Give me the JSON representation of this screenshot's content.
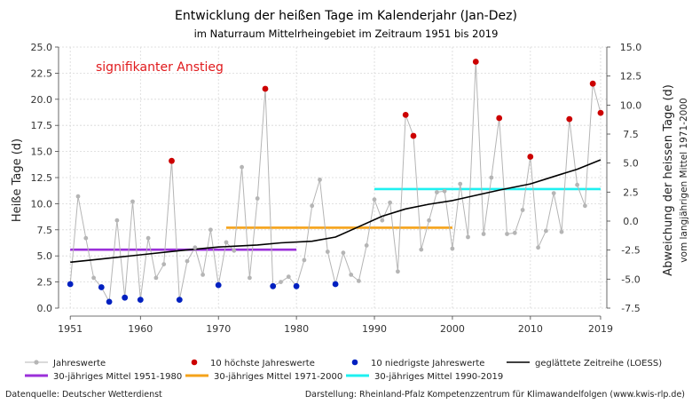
{
  "chart_data": {
    "type": "line",
    "title": "Entwicklung der heißen Tage im Kalenderjahr (Jan-Dez)",
    "subtitle": "im Naturraum Mittelrheingebiet im Zeitraum 1951 bis 2019",
    "xlabel": "",
    "ylabel": "Heiße Tage (d)",
    "y2label": "Abweichung der heissen Tage (d)",
    "y2sublabel": "vom langjährigen Mittel 1971-2000",
    "xlim": [
      1951,
      2019
    ],
    "ylim": [
      0,
      25
    ],
    "y2lim": [
      -7.5,
      15
    ],
    "x_ticks": [
      1951,
      1960,
      1970,
      1980,
      1990,
      2000,
      2010,
      2019
    ],
    "y_ticks": [
      "0.0",
      "2.5",
      "5.0",
      "7.5",
      "10.0",
      "12.5",
      "15.0",
      "17.5",
      "20.0",
      "22.5",
      "25.0"
    ],
    "y2_ticks": [
      "-7.5",
      "-5.0",
      "-2.5",
      "0.0",
      "2.5",
      "5.0",
      "7.5",
      "10.0",
      "12.5",
      "15.0"
    ],
    "grid": true,
    "annotation": "signifikanter Anstieg",
    "annotation_color": "#e0191c",
    "years": [
      1951,
      1952,
      1953,
      1954,
      1955,
      1956,
      1957,
      1958,
      1959,
      1960,
      1961,
      1962,
      1963,
      1964,
      1965,
      1966,
      1967,
      1968,
      1969,
      1970,
      1971,
      1972,
      1973,
      1974,
      1975,
      1976,
      1977,
      1978,
      1979,
      1980,
      1981,
      1982,
      1983,
      1984,
      1985,
      1986,
      1987,
      1988,
      1989,
      1990,
      1991,
      1992,
      1993,
      1994,
      1995,
      1996,
      1997,
      1998,
      1999,
      2000,
      2001,
      2002,
      2003,
      2004,
      2005,
      2006,
      2007,
      2008,
      2009,
      2010,
      2011,
      2012,
      2013,
      2014,
      2015,
      2016,
      2017,
      2018,
      2019
    ],
    "values": [
      2.3,
      10.7,
      6.7,
      2.9,
      2.0,
      0.6,
      8.4,
      1.0,
      10.2,
      0.8,
      6.7,
      2.9,
      4.2,
      14.1,
      0.8,
      4.5,
      5.8,
      3.2,
      7.5,
      2.2,
      6.3,
      5.5,
      13.5,
      2.9,
      10.5,
      21.0,
      2.1,
      2.5,
      3.0,
      2.1,
      4.6,
      9.8,
      12.3,
      5.4,
      2.3,
      5.3,
      3.2,
      2.6,
      6.0,
      10.4,
      8.4,
      10.1,
      3.5,
      18.5,
      16.5,
      5.6,
      8.4,
      11.1,
      11.2,
      5.7,
      11.9,
      6.8,
      23.6,
      7.1,
      12.5,
      18.2,
      7.1,
      7.2,
      9.4,
      14.5,
      5.8,
      7.4,
      11.0,
      7.3,
      18.1,
      11.8,
      9.8,
      21.5,
      18.7
    ],
    "top10_years": [
      1964,
      1976,
      1994,
      1995,
      2003,
      2006,
      2010,
      2015,
      2018,
      2019
    ],
    "bottom10_years": [
      1951,
      1955,
      1956,
      1958,
      1960,
      1965,
      1970,
      1977,
      1980,
      1985
    ],
    "loess": [
      [
        1951,
        4.4
      ],
      [
        1955,
        4.7
      ],
      [
        1960,
        5.1
      ],
      [
        1965,
        5.5
      ],
      [
        1970,
        5.85
      ],
      [
        1975,
        6.05
      ],
      [
        1978,
        6.25
      ],
      [
        1982,
        6.4
      ],
      [
        1985,
        6.8
      ],
      [
        1988,
        7.8
      ],
      [
        1991,
        8.8
      ],
      [
        1994,
        9.5
      ],
      [
        1997,
        9.95
      ],
      [
        2000,
        10.3
      ],
      [
        2003,
        10.8
      ],
      [
        2006,
        11.3
      ],
      [
        2010,
        11.9
      ],
      [
        2013,
        12.6
      ],
      [
        2016,
        13.3
      ],
      [
        2019,
        14.2
      ]
    ],
    "means": [
      {
        "name": "30-jähriges Mittel 1951-1980",
        "start": 1951,
        "end": 1980,
        "value": 5.6,
        "color": "#9b30d9"
      },
      {
        "name": "30-jähriges Mittel 1971-2000",
        "start": 1971,
        "end": 2000,
        "value": 7.7,
        "color": "#f5a31a"
      },
      {
        "name": "30-jähriges Mittel 1990-2019",
        "start": 1990,
        "end": 2019,
        "value": 11.4,
        "color": "#1ef0f0"
      }
    ],
    "colors": {
      "jahreswerte": "#b5b5b5",
      "hoechste": "#cc0000",
      "niedrigste": "#0020c0",
      "loess": "#000000"
    },
    "legend": {
      "jahreswerte": "Jahreswerte",
      "hoechste": "10 höchste Jahreswerte",
      "niedrigste": "10 niedrigste Jahreswerte",
      "loess": "geglättete Zeitreihe (LOESS)",
      "mean1": "30-jähriges Mittel 1951-1980",
      "mean2": "30-jähriges Mittel 1971-2000",
      "mean3": "30-jähriges Mittel 1990-2019"
    }
  },
  "footer": {
    "source": "Datenquelle: Deutscher Wetterdienst",
    "credit": "Darstellung: Rheinland-Pfalz Kompetenzzentrum für Klimawandelfolgen (www.kwis-rlp.de)"
  }
}
